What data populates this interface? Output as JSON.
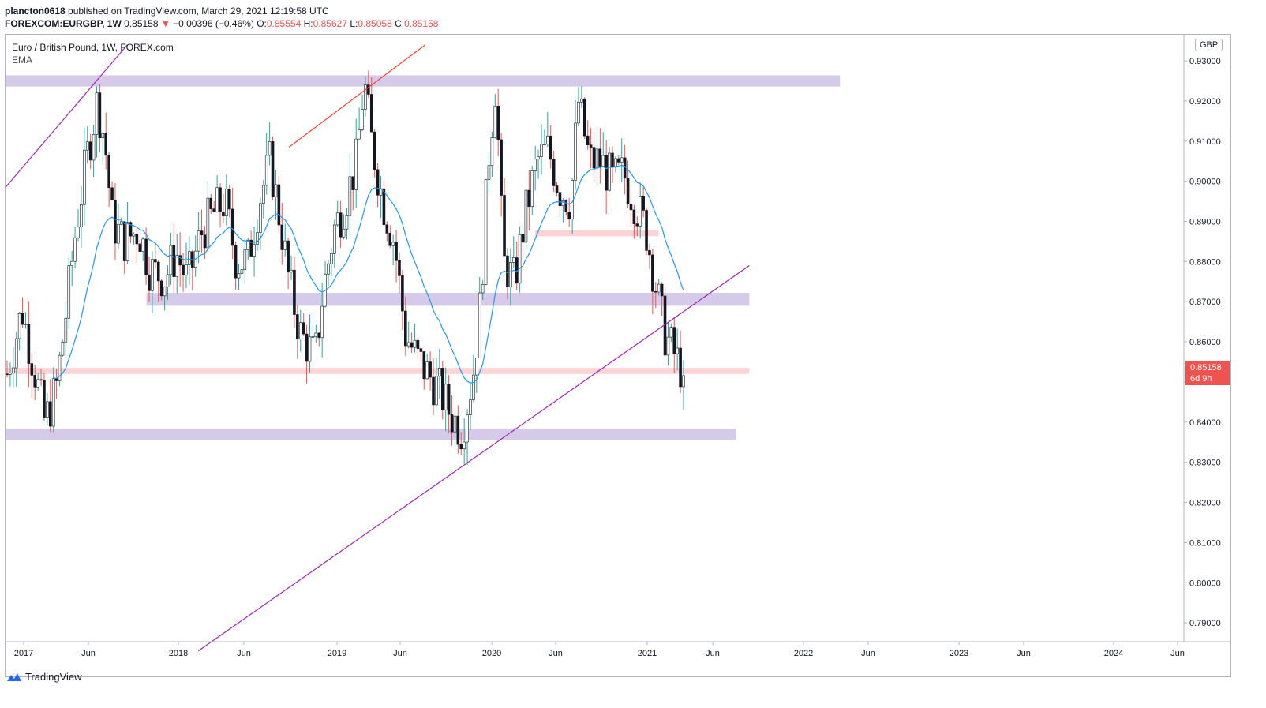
{
  "header": {
    "user": "plancton0618",
    "published": " published on TradingView.com, March 29, 2021 12:19:58 UTC",
    "symbol": "FOREXCOM:EURGBP, 1W",
    "last": "0.85158",
    "change_arrow": "▼",
    "change": "−0.00396 (−0.46%)",
    "o_label": "O:",
    "o_value": "0.85554",
    "h_label": "H:",
    "h_value": "0.85627",
    "l_label": "L:",
    "l_value": "0.85058",
    "c_label": "C:",
    "c_value": "0.85158"
  },
  "legend": {
    "title": "Euro / British Pound, 1W, FOREX.com",
    "indicator": "EMA"
  },
  "currency_badge": "GBP",
  "price_tag": {
    "price": "0.85158",
    "countdown": "6d 9h"
  },
  "footer": {
    "brand": "TradingView"
  },
  "colors": {
    "bull": "#131722",
    "bear": "#131722",
    "wick_up": "#26a69a",
    "wick_down": "#ef5350",
    "ema": "#2196f3",
    "support_zone": "#d1c4e9",
    "pink_zone": "#ffcdd2",
    "trendline": "#9c27b0",
    "red_trendline": "#f44336"
  },
  "chart_data": {
    "type": "candlestick",
    "title": "Euro / British Pound, 1W, FOREX.com",
    "currency": "GBP",
    "y_ticks": [
      "0.93000",
      "0.92000",
      "0.91000",
      "0.90000",
      "0.89000",
      "0.88000",
      "0.87000",
      "0.86000",
      "0.85000",
      "0.84000",
      "0.83000",
      "0.82000",
      "0.81000",
      "0.80000",
      "0.79000"
    ],
    "x_ticks": [
      "2017",
      "Jun",
      "2018",
      "Jun",
      "2019",
      "Jun",
      "2020",
      "Jun",
      "2021",
      "Jun",
      "2022",
      "Jun",
      "2023",
      "Jun",
      "2024",
      "Jun"
    ],
    "ylim": [
      0.7855,
      0.9365
    ],
    "last_price": 0.85158,
    "zones": [
      {
        "color": "purple",
        "from": 0.9236,
        "to": 0.9264,
        "x_start": "2017-01",
        "x_end": "2022-04"
      },
      {
        "color": "purple",
        "from": 0.869,
        "to": 0.8722,
        "x_start": "2017-12",
        "x_end": "2021-09"
      },
      {
        "color": "purple",
        "from": 0.8356,
        "to": 0.8384,
        "x_start": "2017-01",
        "x_end": "2021-08"
      },
      {
        "color": "pink",
        "from": 0.852,
        "to": 0.8535,
        "x_start": "2017-01",
        "x_end": "2021-09"
      },
      {
        "color": "pink",
        "from": 0.8863,
        "to": 0.8878,
        "x_start": "2020-06",
        "x_end": "2021-02"
      }
    ],
    "trendlines": [
      {
        "color": "purple",
        "from": [
          "2017-01",
          0.8985
        ],
        "to": [
          "2017-09",
          0.934
        ]
      },
      {
        "color": "red",
        "from": [
          "2018-11",
          0.9085
        ],
        "to": [
          "2019-08",
          0.934
        ]
      },
      {
        "color": "purple",
        "from": [
          "2018-04",
          0.783
        ],
        "to": [
          "2021-09",
          0.879
        ]
      }
    ]
  }
}
